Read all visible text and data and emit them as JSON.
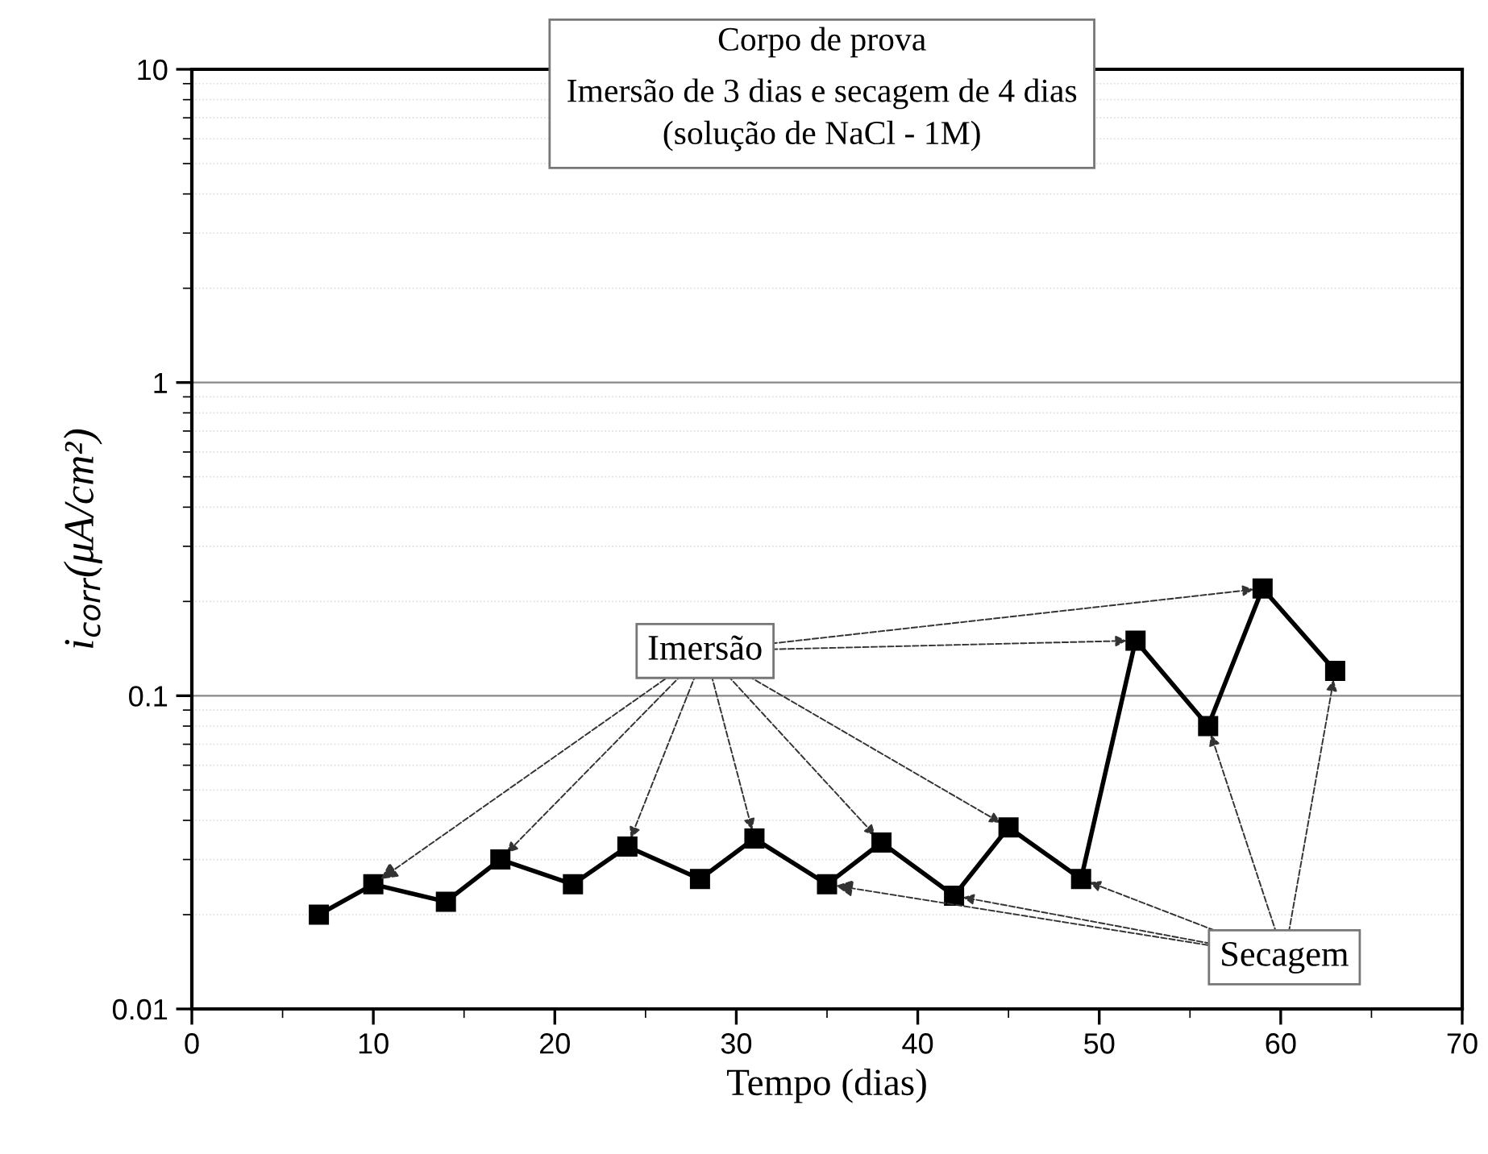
{
  "chart_data": {
    "type": "line",
    "xlabel": "Tempo (dias)",
    "ylabel": "i$_{corr}$(μA/cm²)",
    "x": [
      7,
      10,
      14,
      17,
      21,
      24,
      28,
      31,
      35,
      38,
      42,
      45,
      49,
      52,
      56,
      59,
      63
    ],
    "series": [
      {
        "color": "#000000",
        "values": [
          0.02,
          0.025,
          0.022,
          0.03,
          0.025,
          0.033,
          0.026,
          0.035,
          0.025,
          0.034,
          0.023,
          0.038,
          0.026,
          0.15,
          0.08,
          0.22,
          0.12
        ]
      }
    ],
    "log": "y",
    "xlim": [
      0,
      70
    ],
    "xticks": [
      0,
      10,
      20,
      30,
      40,
      50,
      60,
      70
    ],
    "ylim": [
      0.01,
      10
    ],
    "yticks": [
      0.01,
      0.1,
      1,
      10
    ],
    "grid": "y",
    "marker": "square",
    "line_style": "solid",
    "annotations": [
      "Corpo de prova",
      "Imersão de 3 dias e secagem de 4 dias",
      "(solução de NaCl - 1M)",
      {
        "text": "Imersão",
        "x": 10,
        "y": 0.025
      },
      {
        "text": "Secagem",
        "x": 35,
        "y": 0.025
      }
    ]
  }
}
